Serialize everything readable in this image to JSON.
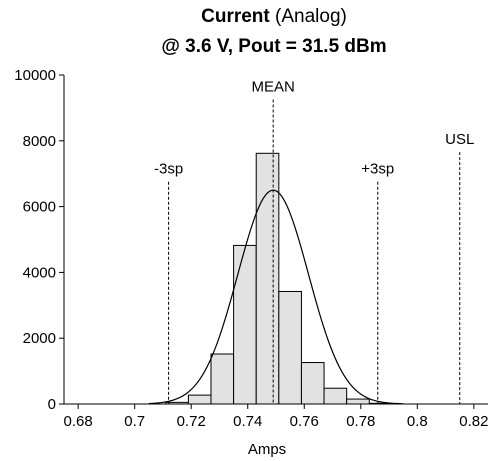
{
  "chart_data": {
    "type": "histogram",
    "title_bold": "Current",
    "title_rest": "(Analog)",
    "subtitle": "@ 3.6 V, Pout = 31.5 dBm",
    "xlabel": "Amps",
    "ylabel": "",
    "xlim": [
      0.675,
      0.825
    ],
    "ylim": [
      0,
      10000
    ],
    "x_ticks": [
      0.68,
      0.7,
      0.72,
      0.74,
      0.76,
      0.78,
      0.8,
      0.82
    ],
    "x_tick_labels": [
      "0.68",
      "0.7",
      "0.72",
      "0.74",
      "0.76",
      "0.78",
      "0.8",
      "0.82"
    ],
    "y_ticks": [
      0,
      2000,
      4000,
      6000,
      8000,
      10000
    ],
    "y_tick_labels": [
      "0",
      "2000",
      "4000",
      "6000",
      "8000",
      "10000"
    ],
    "bin_width": 0.008,
    "bins": [
      {
        "start": 0.711,
        "value": 50
      },
      {
        "start": 0.719,
        "value": 270
      },
      {
        "start": 0.727,
        "value": 1520
      },
      {
        "start": 0.735,
        "value": 4820
      },
      {
        "start": 0.743,
        "value": 7620
      },
      {
        "start": 0.751,
        "value": 3420
      },
      {
        "start": 0.759,
        "value": 1260
      },
      {
        "start": 0.767,
        "value": 480
      },
      {
        "start": 0.775,
        "value": 150
      },
      {
        "start": 0.783,
        "value": 20
      }
    ],
    "normal_curve": {
      "mean": 0.749,
      "sigma": 0.0125,
      "peak": 6500,
      "x_range": [
        0.705,
        0.795
      ]
    },
    "reference_lines": [
      {
        "label": "-3sp",
        "x": 0.712,
        "label_y": 7000
      },
      {
        "label": "MEAN",
        "x": 0.749,
        "label_y": 9500
      },
      {
        "label": "+3sp",
        "x": 0.786,
        "label_y": 7000
      },
      {
        "label": "USL",
        "x": 0.815,
        "label_y": 7900
      }
    ],
    "bar_fill": "#e2e2e2",
    "grid": false
  }
}
